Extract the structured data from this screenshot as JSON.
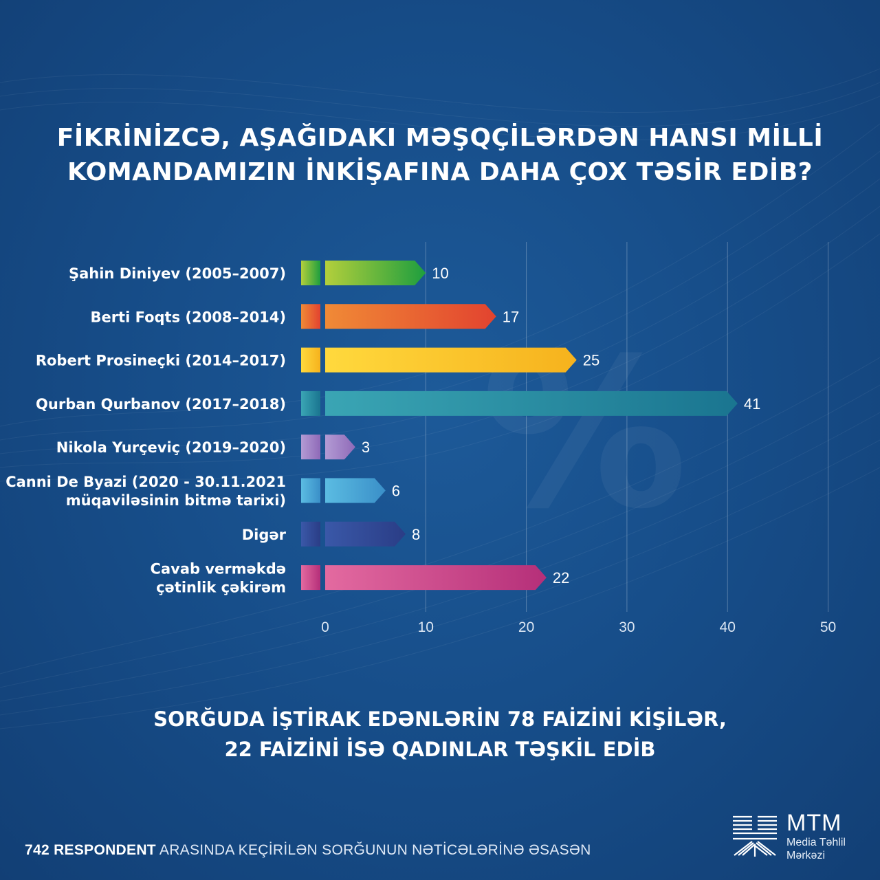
{
  "title": {
    "line1": "FİKRİNİZCƏ, AŞAĞIDAKI MƏŞQÇİLƏRDƏN HANSI MİLLİ",
    "line2": "KOMANDAMIZIN İNKİŞAFINA DAHA ÇOX TƏSİR EDİB?"
  },
  "watermark": "%",
  "chart_data": {
    "type": "bar",
    "orientation": "horizontal",
    "categories": [
      [
        "Şahin Diniyev (2005–2007)"
      ],
      [
        "Berti Foqts (2008–2014)"
      ],
      [
        "Robert Prosineçki (2014–2017)"
      ],
      [
        "Qurban Qurbanov  (2017–2018)"
      ],
      [
        "Nikola Yurçeviç (2019–2020)"
      ],
      [
        "Canni De Byazi (2020 - 30.11.2021",
        "müqaviləsinin bitmə tarixi)"
      ],
      [
        "Digər"
      ],
      [
        "Cavab verməkdə",
        "çətinlik çəkirəm"
      ]
    ],
    "values": [
      10,
      17,
      25,
      41,
      3,
      6,
      8,
      22
    ],
    "value_labels": [
      "10",
      "17",
      "25",
      "41",
      "3",
      "6",
      "8",
      "22"
    ],
    "colors": [
      [
        "#b3cf3c",
        "#1e9e3e"
      ],
      [
        "#f08a36",
        "#e2432f"
      ],
      [
        "#ffd93d",
        "#f6b21d"
      ],
      [
        "#3aa5b4",
        "#1a7590"
      ],
      [
        "#b39bd4",
        "#8f6ab8"
      ],
      [
        "#5bbce2",
        "#3a8fc8"
      ],
      [
        "#3a58a8",
        "#2a3d86"
      ],
      [
        "#e36aa0",
        "#b52f79"
      ]
    ],
    "x_ticks": [
      "0",
      "10",
      "20",
      "30",
      "40",
      "50"
    ],
    "xlim": [
      0,
      50
    ],
    "grid": true
  },
  "footnote": {
    "line1": "SORĞUDA İŞTİRAK EDƏNLƏRİN 78 FAİZİNİ KİŞİLƏR,",
    "line2": "22 FAİZİNİ İSƏ QADINLAR TƏŞKİL EDİB"
  },
  "source": {
    "bold": "742 RESPONDENT",
    "rest": " ARASINDA KEÇİRİLƏN SORĞUNUN NƏTİCƏLƏRİNƏ ƏSASƏN"
  },
  "logo": {
    "brand": "MTM",
    "sub_line1": "Media Təhlil",
    "sub_line2": "Mərkəzi"
  }
}
